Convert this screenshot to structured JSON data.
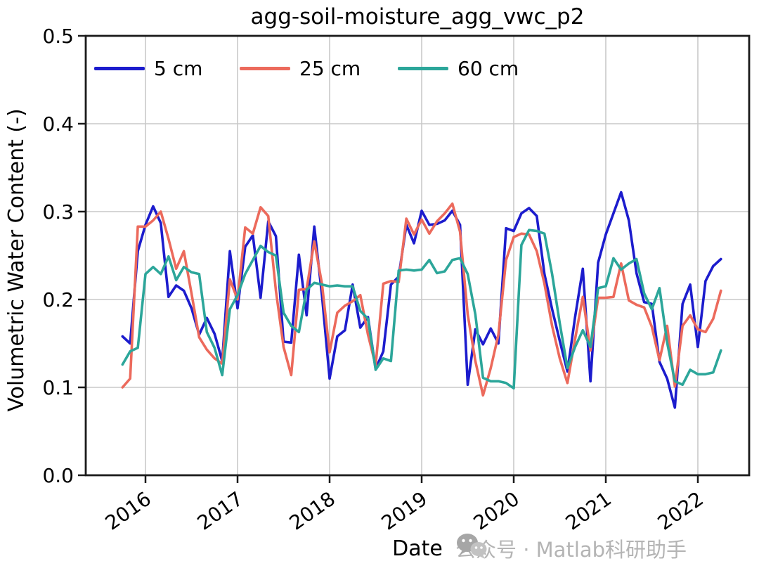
{
  "page": {
    "background": "#ffffff"
  },
  "title": "agg-soil-moisture_agg_vwc_p2",
  "watermark": {
    "icon": "wechat-icon",
    "text": "公众号 · Matlab科研助手",
    "color": "#b4b4b4"
  },
  "colors": {
    "series_5cm": "#1c1ccd",
    "series_25cm": "#ec6a5c",
    "series_60cm": "#2ca69a",
    "grid": "#c9c9c9",
    "spine": "#1a1a1a"
  },
  "chart_data": {
    "type": "line",
    "title": "agg-soil-moisture_agg_vwc_p2",
    "xlabel": "Date",
    "ylabel": "Volumetric Water Content (-)",
    "ylim": [
      0.0,
      0.5
    ],
    "yticks": [
      "0.0",
      "0.1",
      "0.2",
      "0.3",
      "0.4",
      "0.5"
    ],
    "xtick_years": [
      "2016",
      "2017",
      "2018",
      "2019",
      "2020",
      "2021",
      "2022"
    ],
    "grid": true,
    "legend_position": "upper left, horizontal row, no frame",
    "x": [
      "2015-10",
      "2015-11",
      "2015-12",
      "2016-01",
      "2016-02",
      "2016-03",
      "2016-04",
      "2016-05",
      "2016-06",
      "2016-07",
      "2016-08",
      "2016-09",
      "2016-10",
      "2016-11",
      "2016-12",
      "2017-01",
      "2017-02",
      "2017-03",
      "2017-04",
      "2017-05",
      "2017-06",
      "2017-07",
      "2017-08",
      "2017-09",
      "2017-10",
      "2017-11",
      "2017-12",
      "2018-01",
      "2018-02",
      "2018-03",
      "2018-04",
      "2018-05",
      "2018-06",
      "2018-07",
      "2018-08",
      "2018-09",
      "2018-10",
      "2018-11",
      "2018-12",
      "2019-01",
      "2019-02",
      "2019-03",
      "2019-04",
      "2019-05",
      "2019-06",
      "2019-07",
      "2019-08",
      "2019-09",
      "2019-10",
      "2019-11",
      "2019-12",
      "2020-01",
      "2020-02",
      "2020-03",
      "2020-04",
      "2020-05",
      "2020-06",
      "2020-07",
      "2020-08",
      "2020-09",
      "2020-10",
      "2020-11",
      "2020-12",
      "2021-01",
      "2021-02",
      "2021-03",
      "2021-04",
      "2021-05",
      "2021-06",
      "2021-07",
      "2021-08",
      "2021-09",
      "2021-10",
      "2021-11",
      "2021-12",
      "2022-01",
      "2022-02",
      "2022-03",
      "2022-04"
    ],
    "series": [
      {
        "name": "5 cm",
        "color": "#1c1ccd",
        "values": [
          0.158,
          0.15,
          0.255,
          0.285,
          0.306,
          0.287,
          0.203,
          0.216,
          0.21,
          0.19,
          0.16,
          0.179,
          0.161,
          0.13,
          0.255,
          0.19,
          0.26,
          0.273,
          0.202,
          0.289,
          0.272,
          0.152,
          0.151,
          0.251,
          0.182,
          0.283,
          0.205,
          0.11,
          0.158,
          0.165,
          0.217,
          0.168,
          0.18,
          0.121,
          0.141,
          0.217,
          0.226,
          0.285,
          0.264,
          0.301,
          0.285,
          0.286,
          0.29,
          0.301,
          0.285,
          0.103,
          0.166,
          0.149,
          0.167,
          0.15,
          0.281,
          0.278,
          0.298,
          0.304,
          0.295,
          0.229,
          0.189,
          0.153,
          0.118,
          0.18,
          0.235,
          0.107,
          0.242,
          0.274,
          0.298,
          0.322,
          0.29,
          0.23,
          0.197,
          0.195,
          0.129,
          0.11,
          0.077,
          0.195,
          0.217,
          0.146,
          0.221,
          0.238,
          0.246
        ]
      },
      {
        "name": "25 cm",
        "color": "#ec6a5c",
        "values": [
          0.1,
          0.11,
          0.283,
          0.283,
          0.29,
          0.3,
          0.269,
          0.235,
          0.255,
          0.207,
          0.157,
          0.143,
          0.133,
          0.127,
          0.223,
          0.2,
          0.282,
          0.275,
          0.305,
          0.295,
          0.21,
          0.146,
          0.114,
          0.211,
          0.212,
          0.266,
          0.218,
          0.14,
          0.185,
          0.193,
          0.198,
          0.205,
          0.16,
          0.125,
          0.218,
          0.221,
          0.22,
          0.292,
          0.274,
          0.291,
          0.275,
          0.289,
          0.298,
          0.309,
          0.277,
          0.183,
          0.13,
          0.091,
          0.122,
          0.16,
          0.245,
          0.271,
          0.275,
          0.274,
          0.255,
          0.218,
          0.17,
          0.133,
          0.105,
          0.155,
          0.203,
          0.142,
          0.202,
          0.202,
          0.203,
          0.241,
          0.199,
          0.194,
          0.191,
          0.169,
          0.131,
          0.17,
          0.101,
          0.17,
          0.182,
          0.166,
          0.163,
          0.178,
          0.21
        ]
      },
      {
        "name": "60 cm",
        "color": "#2ca69a",
        "values": [
          0.126,
          0.141,
          0.145,
          0.229,
          0.237,
          0.229,
          0.249,
          0.222,
          0.237,
          0.231,
          0.229,
          0.163,
          0.145,
          0.114,
          0.189,
          0.205,
          0.229,
          0.245,
          0.261,
          0.254,
          0.25,
          0.185,
          0.17,
          0.163,
          0.211,
          0.219,
          0.217,
          0.215,
          0.216,
          0.215,
          0.215,
          0.187,
          0.178,
          0.12,
          0.133,
          0.13,
          0.233,
          0.234,
          0.233,
          0.234,
          0.245,
          0.23,
          0.232,
          0.245,
          0.247,
          0.229,
          0.183,
          0.111,
          0.107,
          0.107,
          0.105,
          0.099,
          0.262,
          0.279,
          0.278,
          0.275,
          0.229,
          0.173,
          0.122,
          0.146,
          0.165,
          0.146,
          0.213,
          0.215,
          0.247,
          0.234,
          0.241,
          0.246,
          0.207,
          0.189,
          0.213,
          0.151,
          0.107,
          0.103,
          0.12,
          0.115,
          0.115,
          0.117,
          0.142
        ]
      }
    ]
  },
  "legend": {
    "items": [
      {
        "label": "5 cm",
        "color": "#1c1ccd"
      },
      {
        "label": "25 cm",
        "color": "#ec6a5c"
      },
      {
        "label": "60 cm",
        "color": "#2ca69a"
      }
    ]
  }
}
